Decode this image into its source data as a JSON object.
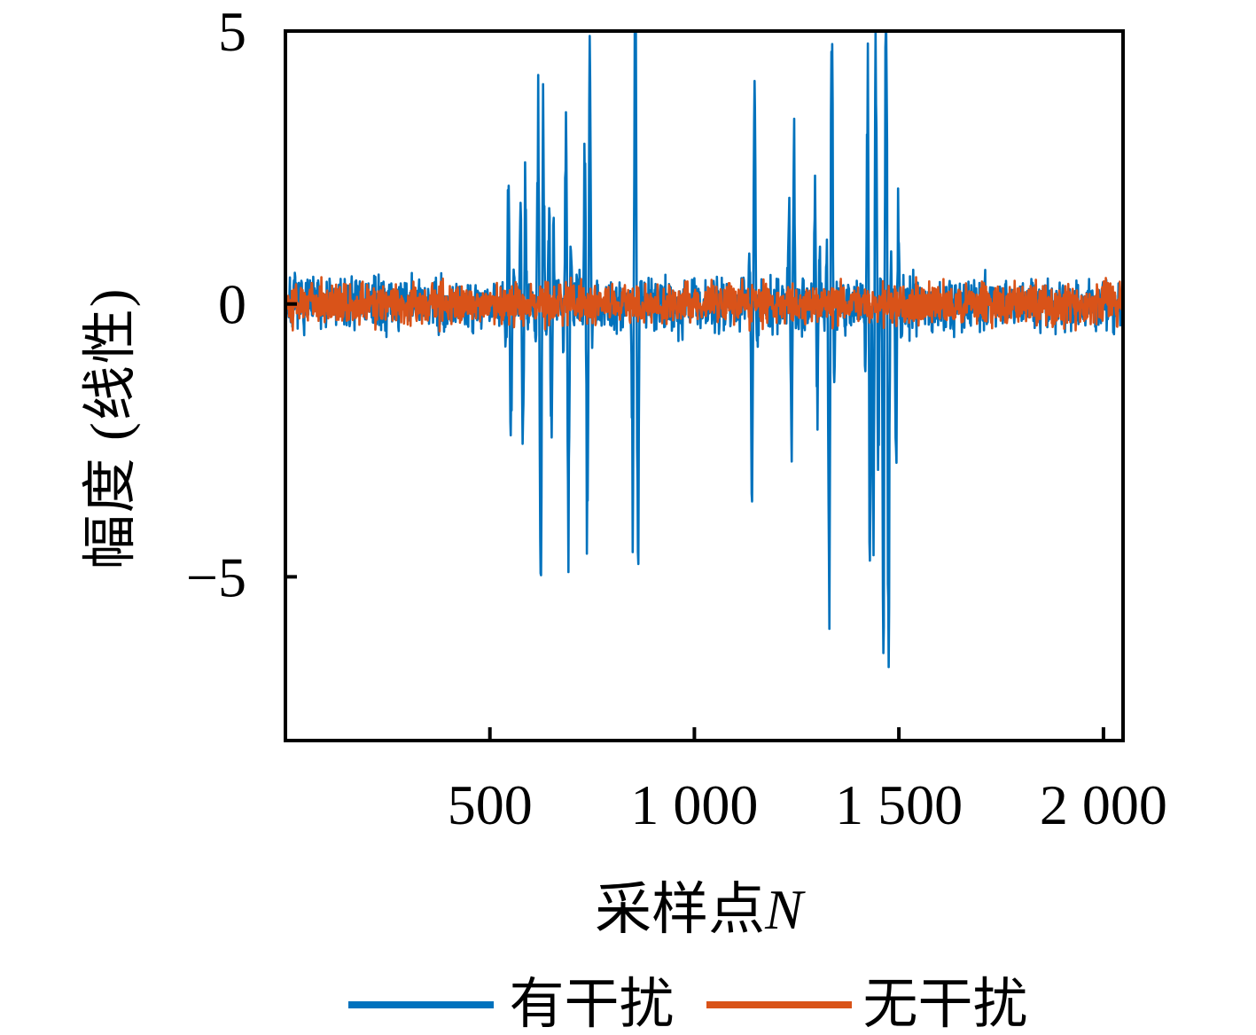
{
  "figure": {
    "background": "#ffffff",
    "axis_color": "#000000"
  },
  "axes": {
    "y_label": "幅度 (线性)",
    "x_label_cjk": "采样点",
    "x_label_var": "N"
  },
  "legend": {
    "items": [
      {
        "label": "有干扰",
        "color": "#0072BD"
      },
      {
        "label": "无干扰",
        "color": "#D95319"
      }
    ],
    "position": "below-axes-horizontal"
  },
  "chart_data": {
    "type": "line",
    "title": "",
    "xlabel": "采样点N",
    "ylabel": "幅度 (线性)",
    "xlim": [
      0,
      2048
    ],
    "ylim": [
      -8,
      5
    ],
    "grid": false,
    "legend_position": "bottom",
    "xticks": {
      "values": [
        500,
        1000,
        1500,
        2000
      ],
      "labels": [
        "500",
        "1 000",
        "1 500",
        "2 000"
      ]
    },
    "yticks": {
      "values": [
        5,
        0,
        -5
      ],
      "labels": [
        "5",
        "0",
        "−5"
      ]
    },
    "n_samples": 2048,
    "seed": 7,
    "burst_oscillation_period_samples": 14,
    "series": [
      {
        "name": "有干扰",
        "color": "#0072BD",
        "noise_peak_amplitude": 0.72,
        "bursts": [
          {
            "center": 548,
            "width": 10,
            "up": 2.3,
            "down": -2.5
          },
          {
            "center": 581,
            "width": 9,
            "up": 2.35,
            "down": -2.7
          },
          {
            "center": 624,
            "width": 12,
            "up": 4.2,
            "down": -5.0
          },
          {
            "center": 650,
            "width": 8,
            "up": 1.8,
            "down": -3.0
          },
          {
            "center": 689,
            "width": 11,
            "up": 3.7,
            "down": -4.8
          },
          {
            "center": 739,
            "width": 11,
            "up": 4.9,
            "down": -3.9
          },
          {
            "center": 856,
            "width": 11,
            "up": 5.4,
            "down": -4.6
          },
          {
            "center": 1144,
            "width": 11,
            "up": 4.0,
            "down": -3.9
          },
          {
            "center": 1238,
            "width": 9,
            "up": 3.5,
            "down": -2.4
          },
          {
            "center": 1300,
            "width": 8,
            "up": 2.2,
            "down": -2.0
          },
          {
            "center": 1333,
            "width": 11,
            "up": 4.6,
            "down": -5.9
          },
          {
            "center": 1426,
            "width": 9,
            "up": 4.5,
            "down": -4.5
          },
          {
            "center": 1443,
            "width": 9,
            "up": 5.7,
            "down": -4.8
          },
          {
            "center": 1469,
            "width": 11,
            "up": 5.2,
            "down": -6.8
          },
          {
            "center": 1497,
            "width": 8,
            "up": 1.8,
            "down": -2.9
          }
        ]
      },
      {
        "name": "无干扰",
        "color": "#D95319",
        "noise_peak_amplitude": 0.55,
        "bursts": []
      }
    ]
  }
}
